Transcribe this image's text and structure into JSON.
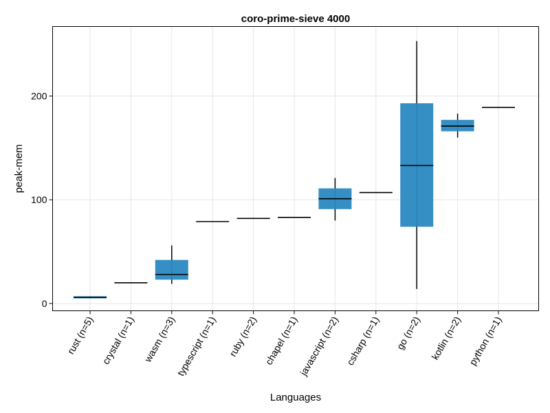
{
  "chart_data": {
    "type": "box",
    "title": "coro-prime-sieve 4000",
    "xlabel": "Languages",
    "ylabel": "peak-mem",
    "ylim": [
      -7,
      267
    ],
    "yticks": [
      0,
      100,
      200
    ],
    "grid": true,
    "box_color": "#2a88c1",
    "median_color": "#000000",
    "categories": [
      "rust (n=5)",
      "crystal (n=1)",
      "wasm (n=3)",
      "typescript (n=1)",
      "ruby (n=2)",
      "chapel (n=1)",
      "javascript (n=2)",
      "csharp (n=1)",
      "go (n=2)",
      "kotlin (n=2)",
      "python (n=1)"
    ],
    "boxes": [
      {
        "min": 5,
        "q1": 5,
        "median": 6,
        "q3": 7,
        "max": 7
      },
      {
        "min": 20,
        "q1": 20,
        "median": 20,
        "q3": 20,
        "max": 20
      },
      {
        "min": 19,
        "q1": 23,
        "median": 28,
        "q3": 42,
        "max": 56
      },
      {
        "min": 79,
        "q1": 79,
        "median": 79,
        "q3": 79,
        "max": 79
      },
      {
        "min": 82,
        "q1": 82,
        "median": 82,
        "q3": 82,
        "max": 82
      },
      {
        "min": 83,
        "q1": 83,
        "median": 83,
        "q3": 83,
        "max": 83
      },
      {
        "min": 80,
        "q1": 91,
        "median": 101,
        "q3": 111,
        "max": 121
      },
      {
        "min": 107,
        "q1": 107,
        "median": 107,
        "q3": 107,
        "max": 107
      },
      {
        "min": 14,
        "q1": 74,
        "median": 133,
        "q3": 193,
        "max": 253
      },
      {
        "min": 160,
        "q1": 166,
        "median": 171,
        "q3": 177,
        "max": 183
      },
      {
        "min": 189,
        "q1": 189,
        "median": 189,
        "q3": 189,
        "max": 189
      }
    ]
  }
}
